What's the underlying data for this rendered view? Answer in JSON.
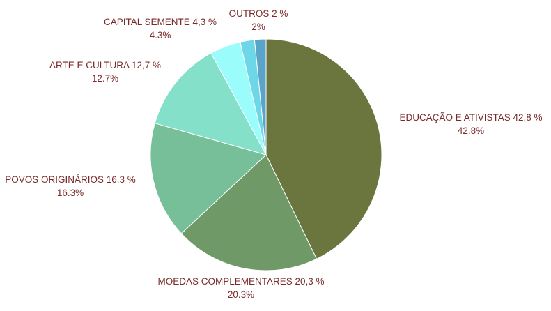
{
  "chart_data": {
    "type": "pie",
    "title": "",
    "categories": [
      "EDUCAÇÃO E ATIVISTAS",
      "MOEDAS COMPLEMENTARES",
      "POVOS ORIGINÁRIOS",
      "ARTE E CULTURA",
      "CAPITAL SEMENTE",
      "OUTROS"
    ],
    "values": [
      42.8,
      20.3,
      16.3,
      12.7,
      4.3,
      2
    ],
    "labels": [
      "EDUCAÇÃO E ATIVISTAS 42,8 %",
      "MOEDAS COMPLEMENTARES 20,3 %",
      "POVOS ORIGINÁRIOS 16,3 %",
      "ARTE E CULTURA 12,7 %",
      "CAPITAL SEMENTE 4,3 %",
      "OUTROS 2 %"
    ],
    "percent_labels": [
      "42.8%",
      "20.3%",
      "16.3%",
      "12.7%",
      "4.3%",
      "2%"
    ],
    "slice_colors": [
      "#6b763e",
      "#6f9a67",
      "#76bf98",
      "#84e0c9",
      "#9bfcfc",
      "#6dd7e8"
    ],
    "remainder_value": 1.6,
    "remainder_color": "#5aa4c9",
    "label_color": "#7a2a2a",
    "start": "top",
    "direction": "clockwise",
    "legend": "none"
  }
}
